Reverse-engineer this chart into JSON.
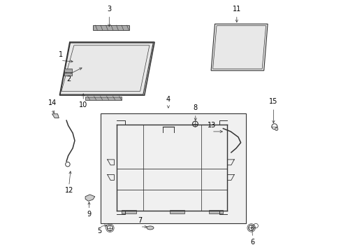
{
  "background_color": "#ffffff",
  "fig_width": 4.89,
  "fig_height": 3.6,
  "dpi": 100,
  "line_color": "#333333",
  "fill_light": "#e8e8e8",
  "fill_mid": "#cccccc",
  "fill_dark": "#aaaaaa",
  "box_fill": "#f0f0f0",
  "labels": [
    [
      1,
      0.12,
      0.755,
      0.062,
      0.76
    ],
    [
      2,
      0.155,
      0.735,
      0.095,
      0.705
    ],
    [
      3,
      0.255,
      0.885,
      0.255,
      0.94
    ],
    [
      4,
      0.49,
      0.57,
      0.49,
      0.582
    ],
    [
      5,
      0.255,
      0.108,
      0.215,
      0.1
    ],
    [
      6,
      0.822,
      0.112,
      0.825,
      0.058
    ],
    [
      7,
      0.415,
      0.1,
      0.378,
      0.1
    ],
    [
      8,
      0.598,
      0.512,
      0.598,
      0.548
    ],
    [
      9,
      0.175,
      0.208,
      0.175,
      0.168
    ],
    [
      10,
      0.152,
      0.638,
      0.152,
      0.6
    ],
    [
      11,
      0.762,
      0.902,
      0.762,
      0.94
    ],
    [
      12,
      0.102,
      0.33,
      0.095,
      0.262
    ],
    [
      13,
      0.715,
      0.478,
      0.662,
      0.478
    ],
    [
      14,
      0.04,
      0.542,
      0.028,
      0.568
    ],
    [
      15,
      0.908,
      0.502,
      0.908,
      0.572
    ]
  ]
}
